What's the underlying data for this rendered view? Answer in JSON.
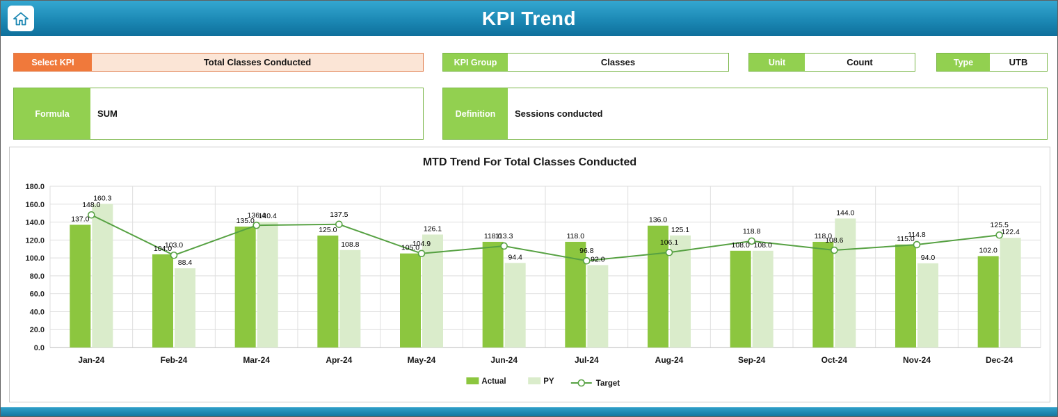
{
  "header": {
    "title": "KPI Trend"
  },
  "fields": {
    "select_kpi": {
      "label": "Select KPI",
      "value": "Total Classes Conducted"
    },
    "kpi_group": {
      "label": "KPI Group",
      "value": "Classes"
    },
    "unit": {
      "label": "Unit",
      "value": "Count"
    },
    "type": {
      "label": "Type",
      "value": "UTB"
    },
    "formula": {
      "label": "Formula",
      "value": "SUM"
    },
    "definition": {
      "label": "Definition",
      "value": "Sessions conducted"
    }
  },
  "colors": {
    "header_teal": "#1a86b2",
    "label_orange": "#f0793b",
    "orange_fill": "#fbe5d6",
    "label_green": "#92d050",
    "actual_bar": "#8cc63f",
    "py_bar": "#daeccb",
    "target_line": "#56a142"
  },
  "chart_data": {
    "type": "bar",
    "subtype": "grouped bars with target line overlay",
    "title": "MTD Trend For Total Classes Conducted",
    "categories": [
      "Jan-24",
      "Feb-24",
      "Mar-24",
      "Apr-24",
      "May-24",
      "Jun-24",
      "Jul-24",
      "Aug-24",
      "Sep-24",
      "Oct-24",
      "Nov-24",
      "Dec-24"
    ],
    "series": [
      {
        "name": "Actual",
        "type": "bar",
        "color": "#8cc63f",
        "values": [
          137.0,
          104.0,
          135.0,
          125.0,
          105.0,
          118.0,
          118.0,
          136.0,
          108.0,
          118.0,
          115.0,
          102.0
        ]
      },
      {
        "name": "PY",
        "type": "bar",
        "color": "#daeccb",
        "values": [
          160.3,
          88.4,
          140.4,
          108.8,
          126.1,
          94.4,
          92.0,
          125.1,
          108.0,
          144.0,
          94.0,
          122.4
        ]
      },
      {
        "name": "Target",
        "type": "line",
        "color": "#56a142",
        "values": [
          148.0,
          103.0,
          136.4,
          137.5,
          104.9,
          113.3,
          96.8,
          106.1,
          118.8,
          108.6,
          114.8,
          125.5
        ]
      }
    ],
    "xlabel": "",
    "ylabel": "",
    "ylim": [
      0,
      180
    ],
    "ytick_step": 20,
    "ytick_format": "one_decimal",
    "grid": true,
    "legend_position": "bottom"
  }
}
